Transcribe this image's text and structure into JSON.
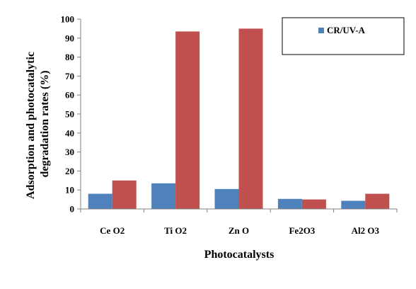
{
  "chart_data": {
    "type": "bar",
    "categories": [
      "Ce O2",
      "Ti O2",
      "Zn O",
      "Fe2O3",
      "Al2 O3"
    ],
    "series": [
      {
        "name": "CR/UV-A",
        "values": [
          8,
          13.5,
          10.5,
          5.3,
          4.3
        ],
        "color": "#4f81bd"
      },
      {
        "values": [
          15,
          93.5,
          95,
          5,
          8
        ],
        "color": "#c0504d"
      }
    ],
    "xlabel": "Photocatalysts",
    "ylabel_lines": [
      "Adsorption and photocatalytic",
      "degradation rates  (%)"
    ],
    "ylim": [
      0,
      100
    ],
    "yticks": [
      0,
      10,
      20,
      30,
      40,
      50,
      60,
      70,
      80,
      90,
      100
    ],
    "grid": false,
    "legend_position": "top-right"
  }
}
